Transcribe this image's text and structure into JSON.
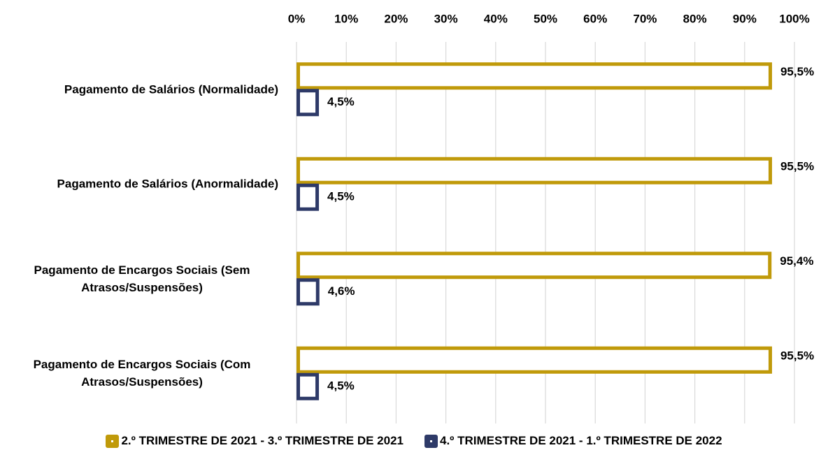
{
  "chart_data": {
    "type": "bar",
    "orientation": "horizontal",
    "categories": [
      "Pagamento de Salários (Normalidade)",
      "Pagamento de Salários (Anormalidade)",
      "Pagamento de Encargos Sociais (Sem Atrasos/Suspensões)",
      "Pagamento de Encargos Sociais (Com Atrasos/Suspensões)"
    ],
    "series": [
      {
        "name": "2.º TRIMESTRE DE 2021 - 3.º TRIMESTRE DE 2021",
        "color": "#c09a0a",
        "values": [
          95.5,
          95.5,
          95.4,
          95.5
        ],
        "value_labels": [
          "95,5%",
          "95,5%",
          "95,4%",
          "95,5%"
        ]
      },
      {
        "name": "4.º TRIMESTRE DE 2021 - 1.º TRIMESTRE DE 2022",
        "color": "#2e3a68",
        "values": [
          4.5,
          4.5,
          4.6,
          4.5
        ],
        "value_labels": [
          "4,5%",
          "4,5%",
          "4,6%",
          "4,5%"
        ]
      }
    ],
    "xlim": [
      0,
      100
    ],
    "xticks": [
      {
        "value": 0,
        "label": "0%"
      },
      {
        "value": 10,
        "label": "10%"
      },
      {
        "value": 20,
        "label": "20%"
      },
      {
        "value": 30,
        "label": "30%"
      },
      {
        "value": 40,
        "label": "40%"
      },
      {
        "value": 50,
        "label": "50%"
      },
      {
        "value": 60,
        "label": "60%"
      },
      {
        "value": 70,
        "label": "70%"
      },
      {
        "value": 80,
        "label": "80%"
      },
      {
        "value": 90,
        "label": "90%"
      },
      {
        "value": 100,
        "label": "100%"
      }
    ],
    "grid": true,
    "legend": "bottom"
  }
}
